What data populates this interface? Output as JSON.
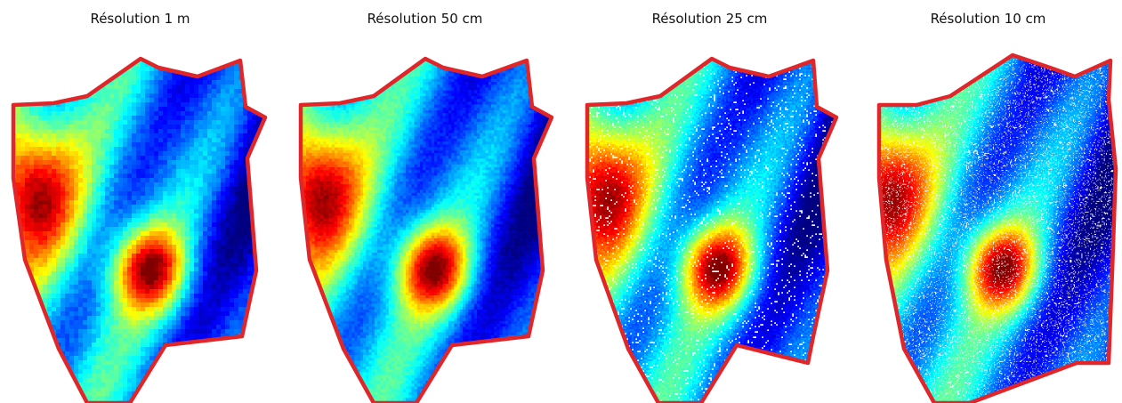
{
  "panels": [
    {
      "title": "Résolution 1 m",
      "resolution": "1 m",
      "pixel_grain": "coarse"
    },
    {
      "title": "Résolution 50 cm",
      "resolution": "50 cm",
      "pixel_grain": "medium"
    },
    {
      "title": "Résolution 25 cm",
      "resolution": "25 cm",
      "pixel_grain": "fine"
    },
    {
      "title": "Résolution 10 cm",
      "resolution": "10 cm",
      "pixel_grain": "very-fine"
    }
  ],
  "colors": {
    "boundary": "#e1262a",
    "colormap": "jet",
    "low": "#1d3fd6",
    "mid": "#2fd0ee",
    "high": "#e8231a",
    "background": "#ffffff"
  }
}
